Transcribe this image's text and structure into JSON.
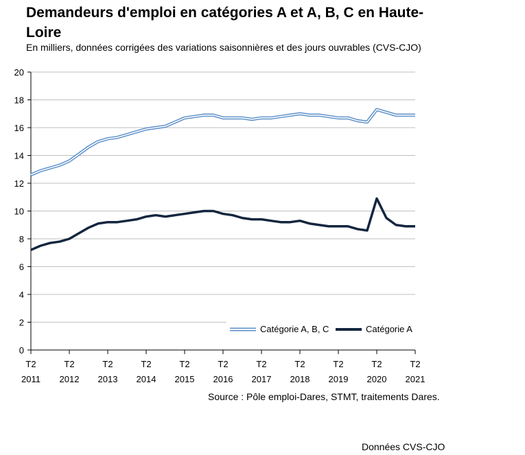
{
  "title": "Demandeurs d'emploi en catégories A et A, B, C en Haute-Loire",
  "subtitle": "En milliers, données corrigées des variations saisonnières et des jours ouvrables (CVS-CJO)",
  "source": "Source : Pôle emploi-Dares, STMT, traitements Dares.",
  "footer": "Données CVS-CJO",
  "colors": {
    "abc": "#5b8fc7",
    "a": "#14263f",
    "axis": "#000000",
    "grid": "#bfbfbf"
  },
  "chart_data": {
    "type": "line",
    "ylim": [
      0,
      20
    ],
    "yticks": [
      0,
      2,
      4,
      6,
      8,
      10,
      12,
      14,
      16,
      18,
      20
    ],
    "grid": true,
    "legend_position": "bottom-right",
    "xticks": [
      {
        "quarter": "T2",
        "year": "2011"
      },
      {
        "quarter": "T2",
        "year": "2012"
      },
      {
        "quarter": "T2",
        "year": "2013"
      },
      {
        "quarter": "T2",
        "year": "2014"
      },
      {
        "quarter": "T2",
        "year": "2015"
      },
      {
        "quarter": "T2",
        "year": "2016"
      },
      {
        "quarter": "T2",
        "year": "2017"
      },
      {
        "quarter": "T2",
        "year": "2018"
      },
      {
        "quarter": "T2",
        "year": "2019"
      },
      {
        "quarter": "T2",
        "year": "2020"
      },
      {
        "quarter": "T2",
        "year": "2021"
      }
    ],
    "x_start": "T2 2011",
    "x_end": "T2 2021",
    "series": [
      {
        "name": "Catégorie A, B, C",
        "style": "double-line",
        "values": [
          12.6,
          12.9,
          13.1,
          13.3,
          13.6,
          14.1,
          14.6,
          15.0,
          15.2,
          15.3,
          15.5,
          15.7,
          15.9,
          16.0,
          16.1,
          16.4,
          16.7,
          16.8,
          16.9,
          16.9,
          16.7,
          16.7,
          16.7,
          16.6,
          16.7,
          16.7,
          16.8,
          16.9,
          17.0,
          16.9,
          16.9,
          16.8,
          16.7,
          16.7,
          16.5,
          16.4,
          17.3,
          17.1,
          16.9,
          16.9,
          16.9
        ]
      },
      {
        "name": "Catégorie A",
        "style": "thick-line",
        "values": [
          7.2,
          7.5,
          7.7,
          7.8,
          8.0,
          8.4,
          8.8,
          9.1,
          9.2,
          9.2,
          9.3,
          9.4,
          9.6,
          9.7,
          9.6,
          9.7,
          9.8,
          9.9,
          10.0,
          10.0,
          9.8,
          9.7,
          9.5,
          9.4,
          9.4,
          9.3,
          9.2,
          9.2,
          9.3,
          9.1,
          9.0,
          8.9,
          8.9,
          8.9,
          8.7,
          8.6,
          10.9,
          9.5,
          9.0,
          8.9,
          8.9
        ]
      }
    ]
  }
}
